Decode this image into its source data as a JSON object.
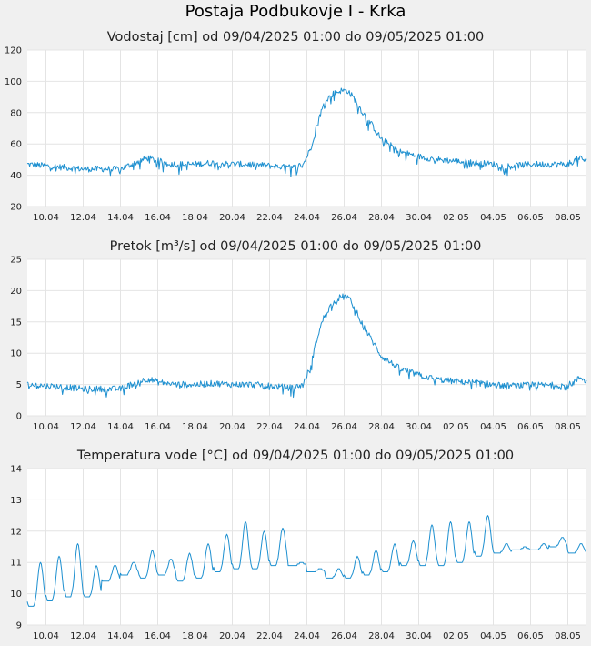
{
  "station_title": "Postaja Podbukovje I - Krka",
  "colors": {
    "line": "#1e90d0",
    "plot_bg": "#ffffff",
    "page_bg": "#f0f0f0",
    "grid": "#e4e4e4"
  },
  "chart_data": [
    {
      "type": "line",
      "title": "Vodostaj [cm] od 09/04/2025 01:00 do 09/05/2025 01:00",
      "xlabel": "",
      "ylabel": "",
      "x_ticks": [
        "10.04",
        "12.04",
        "14.04",
        "16.04",
        "18.04",
        "20.04",
        "22.04",
        "24.04",
        "26.04",
        "28.04",
        "30.04",
        "02.05",
        "04.05",
        "06.05",
        "08.05"
      ],
      "y_ticks": [
        "20",
        "40",
        "60",
        "80",
        "100",
        "120"
      ],
      "ylim": [
        20,
        120
      ],
      "xlim_days": [
        0,
        30
      ],
      "grid": true,
      "series": [
        {
          "x_days": [
            0,
            1,
            2,
            3,
            4,
            5,
            6,
            6.5,
            7,
            8,
            9,
            10,
            11,
            12,
            13,
            14,
            14.3,
            14.8,
            15.2,
            15.6,
            16,
            16.4,
            16.8,
            17,
            17.2,
            17.6,
            18,
            18.5,
            19,
            20,
            21,
            22,
            23,
            24,
            25,
            25.5,
            26,
            27,
            28,
            29,
            29.3,
            29.7,
            30
          ],
          "values": [
            47,
            46,
            45,
            44,
            44,
            44,
            49,
            51,
            49,
            47,
            47,
            48,
            47,
            47,
            46,
            45,
            45,
            47,
            57,
            75,
            88,
            92,
            94,
            94,
            94,
            88,
            80,
            72,
            63,
            55,
            52,
            50,
            49,
            48,
            47,
            46,
            46,
            47,
            47,
            47,
            49,
            51,
            49
          ]
        }
      ]
    },
    {
      "type": "line",
      "title": "Pretok [m³/s] od 09/04/2025 01:00 do 09/05/2025 01:00",
      "xlabel": "",
      "ylabel": "",
      "x_ticks": [
        "10.04",
        "12.04",
        "14.04",
        "16.04",
        "18.04",
        "20.04",
        "22.04",
        "24.04",
        "26.04",
        "28.04",
        "30.04",
        "02.05",
        "04.05",
        "06.05",
        "08.05"
      ],
      "y_ticks": [
        "0",
        "5",
        "10",
        "15",
        "20",
        "25"
      ],
      "ylim": [
        0,
        25
      ],
      "xlim_days": [
        0,
        30
      ],
      "grid": true,
      "series": [
        {
          "x_days": [
            0,
            1,
            2,
            3,
            4,
            5,
            6,
            6.5,
            7,
            8,
            9,
            10,
            11,
            12,
            13,
            14,
            14.3,
            14.8,
            15.2,
            15.6,
            16,
            16.4,
            16.8,
            17,
            17.2,
            17.6,
            18,
            18.5,
            19,
            20,
            21,
            22,
            23,
            24,
            25,
            25.5,
            26,
            27,
            28,
            29,
            29.3,
            29.7,
            30
          ],
          "values": [
            5.0,
            4.8,
            4.6,
            4.3,
            4.3,
            4.3,
            5.5,
            5.9,
            5.4,
            5.0,
            5.0,
            5.2,
            5.0,
            5.0,
            4.8,
            4.5,
            4.5,
            5.0,
            8,
            13,
            16.5,
            18,
            19,
            19,
            19,
            17,
            14.5,
            12,
            9.5,
            7.5,
            6.5,
            5.8,
            5.5,
            5.3,
            5.0,
            4.8,
            4.8,
            4.9,
            4.9,
            4.9,
            5.3,
            6.2,
            5.5
          ]
        }
      ]
    },
    {
      "type": "line",
      "title": "Temperatura vode [°C] od 09/04/2025 01:00 do 09/05/2025 01:00",
      "xlabel": "",
      "ylabel": "",
      "x_ticks": [
        "10.04",
        "12.04",
        "14.04",
        "16.04",
        "18.04",
        "20.04",
        "22.04",
        "24.04",
        "26.04",
        "28.04",
        "30.04",
        "02.05",
        "04.05",
        "06.05",
        "08.05"
      ],
      "y_ticks": [
        "9",
        "10",
        "11",
        "12",
        "13",
        "14"
      ],
      "ylim": [
        9,
        14
      ],
      "xlim_days": [
        0,
        30
      ],
      "grid": true,
      "series": [
        {
          "daily_min": [
            9.6,
            9.8,
            9.9,
            9.9,
            10.4,
            10.6,
            10.5,
            10.6,
            10.4,
            10.5,
            10.7,
            10.8,
            10.8,
            10.9,
            10.9,
            10.7,
            10.5,
            10.5,
            10.6,
            10.7,
            10.9,
            10.9,
            10.9,
            11.0,
            11.2,
            11.3,
            11.4,
            11.4,
            11.5,
            11.3
          ],
          "daily_max": [
            11.0,
            11.2,
            11.6,
            10.9,
            10.9,
            11.0,
            11.4,
            11.1,
            11.3,
            11.6,
            11.9,
            12.3,
            12.0,
            12.1,
            11.0,
            10.8,
            10.8,
            11.2,
            11.4,
            11.6,
            11.7,
            12.2,
            12.3,
            12.3,
            12.5,
            11.6,
            11.5,
            11.6,
            11.8,
            11.6
          ]
        }
      ]
    }
  ]
}
